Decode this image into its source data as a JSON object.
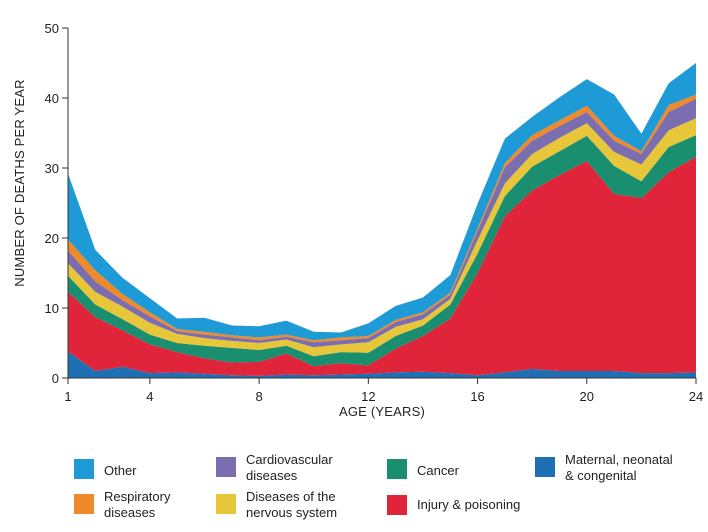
{
  "chart_data": {
    "type": "area",
    "stacked": true,
    "title": "",
    "xlabel": "AGE (YEARS)",
    "ylabel": "NUMBER OF DEATHS PER YEAR",
    "xlim": [
      1,
      24
    ],
    "ylim": [
      0,
      50
    ],
    "x_ticks": [
      1,
      4,
      8,
      12,
      16,
      20,
      24
    ],
    "y_ticks": [
      0,
      10,
      20,
      30,
      40,
      50
    ],
    "grid": false,
    "legend_position": "bottom",
    "x": [
      1,
      2,
      3,
      4,
      5,
      6,
      7,
      8,
      9,
      10,
      11,
      12,
      13,
      14,
      15,
      16,
      17,
      18,
      19,
      20,
      21,
      22,
      23,
      24
    ],
    "series": [
      {
        "name": "Maternal, neonatal & congenital",
        "color": "#1f6fb5",
        "values": [
          3.8,
          1.0,
          1.6,
          0.7,
          0.8,
          0.6,
          0.4,
          0.3,
          0.5,
          0.4,
          0.5,
          0.6,
          0.8,
          0.9,
          0.7,
          0.4,
          0.8,
          1.3,
          1.0,
          1.0,
          1.0,
          0.7,
          0.7,
          0.8
        ]
      },
      {
        "name": "Injury & poisoning",
        "color": "#e0253a",
        "values": [
          8.5,
          7.7,
          5.2,
          4.1,
          2.9,
          2.2,
          1.8,
          2.0,
          3.0,
          1.3,
          1.6,
          1.2,
          3.4,
          5.1,
          7.8,
          14.6,
          22.3,
          25.5,
          28.0,
          30.0,
          25.3,
          25.0,
          28.7,
          30.8
        ]
      },
      {
        "name": "Cancer",
        "color": "#1a8f6f",
        "values": [
          2.3,
          1.8,
          1.6,
          1.4,
          1.3,
          1.8,
          2.1,
          1.7,
          1.1,
          1.4,
          1.6,
          1.8,
          1.8,
          1.5,
          2.0,
          2.8,
          2.9,
          3.4,
          3.4,
          3.6,
          4.0,
          2.4,
          3.6,
          3.1
        ]
      },
      {
        "name": "Diseases of the nervous system",
        "color": "#e8c63a",
        "values": [
          1.8,
          1.8,
          1.8,
          1.7,
          1.3,
          1.1,
          1.0,
          1.0,
          0.9,
          1.3,
          1.1,
          1.5,
          1.3,
          0.9,
          0.8,
          1.9,
          1.8,
          1.8,
          1.9,
          1.8,
          2.0,
          2.4,
          2.4,
          2.4
        ]
      },
      {
        "name": "Cardiovascular diseases",
        "color": "#7a6db0",
        "values": [
          1.8,
          1.5,
          0.9,
          0.9,
          0.4,
          0.5,
          0.5,
          0.4,
          0.4,
          0.7,
          0.6,
          0.6,
          0.7,
          0.7,
          0.6,
          1.3,
          2.3,
          1.9,
          1.7,
          1.6,
          1.6,
          1.5,
          2.6,
          2.8
        ]
      },
      {
        "name": "Respiratory diseases",
        "color": "#ee8a2a",
        "values": [
          1.6,
          1.6,
          0.9,
          0.6,
          0.3,
          0.4,
          0.3,
          0.4,
          0.3,
          0.3,
          0.4,
          0.3,
          0.3,
          0.3,
          0.3,
          0.4,
          0.6,
          0.8,
          0.8,
          0.9,
          0.7,
          0.4,
          1.0,
          0.6
        ]
      },
      {
        "name": "Other",
        "color": "#1e9ad6",
        "values": [
          9.4,
          2.9,
          2.3,
          2.0,
          1.5,
          2.0,
          1.4,
          1.6,
          2.0,
          1.2,
          0.7,
          1.8,
          2.0,
          2.1,
          2.5,
          3.5,
          3.5,
          2.6,
          3.3,
          3.8,
          5.9,
          2.5,
          3.1,
          4.5
        ]
      }
    ],
    "legend": [
      {
        "label": "Other",
        "color": "#1e9ad6"
      },
      {
        "label": "Cardiovascular\ndiseases",
        "color": "#7a6db0"
      },
      {
        "label": "Cancer",
        "color": "#1a8f6f"
      },
      {
        "label": "Maternal, neonatal\n& congenital",
        "color": "#1f6fb5"
      },
      {
        "label": "Respiratory\ndiseases",
        "color": "#ee8a2a"
      },
      {
        "label": "Diseases of the\nnervous system",
        "color": "#e8c63a"
      },
      {
        "label": "Injury & poisoning",
        "color": "#e0253a"
      }
    ]
  }
}
